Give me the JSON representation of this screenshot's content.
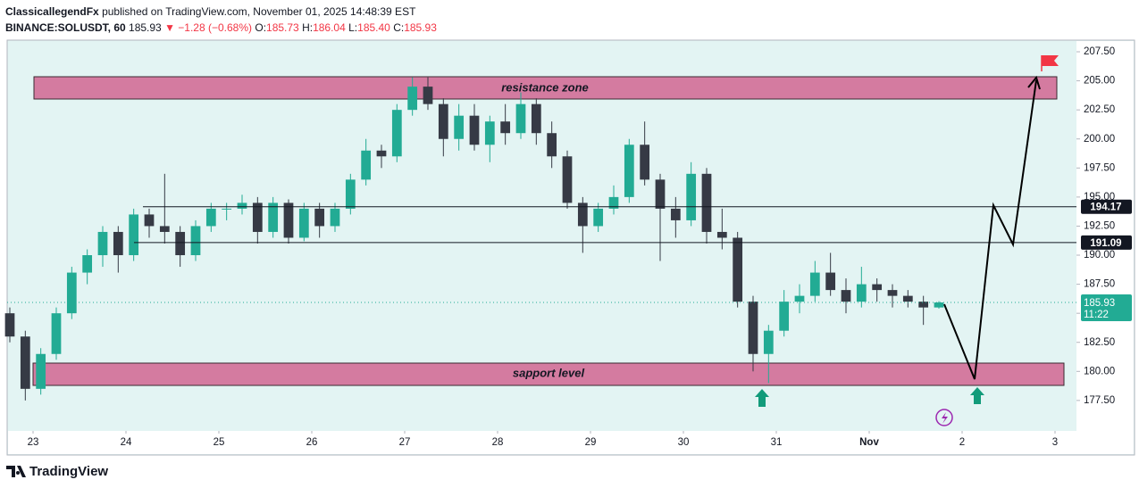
{
  "header": {
    "author": "ClassicallegendFx",
    "published": "published on TradingView.com, November 01, 2025 14:48:39 EST",
    "symbol": "BINANCE:SOLUSDT, 60",
    "last": "185.93",
    "change": "▼ −1.28 (−0.68%)",
    "o_label": "O:",
    "o": "185.73",
    "h_label": "H:",
    "h": "186.04",
    "l_label": "L:",
    "l": "185.40",
    "c_label": "C:",
    "c": "185.93"
  },
  "annotations": {
    "resistance": "resistance zone",
    "support": "sapport level",
    "countdown": "11:22"
  },
  "footer": {
    "brand": "TradingView"
  },
  "chart_data": {
    "type": "candlestick",
    "up_color": "#22ab94",
    "down_color": "#363a45",
    "x": [
      -6,
      -2,
      2,
      6,
      10,
      14,
      18,
      22,
      26,
      30,
      34,
      38,
      42,
      46,
      50,
      54,
      58,
      62,
      66,
      70,
      74,
      78,
      82,
      86,
      90,
      94,
      98,
      102,
      106,
      110,
      114,
      118,
      122,
      126,
      130,
      134,
      138,
      142,
      146,
      150,
      154,
      158,
      162,
      166,
      170,
      174,
      178,
      182,
      186,
      190,
      194,
      198,
      202,
      206,
      210,
      214,
      218,
      222,
      226,
      230,
      234
    ],
    "open": [
      185,
      183,
      178.5,
      181.5,
      185,
      188.5,
      190,
      192,
      190,
      193.5,
      192.5,
      192,
      190,
      192.5,
      194,
      194,
      194.5,
      192,
      194.5,
      191.5,
      194,
      192.5,
      194,
      196.5,
      199,
      198.5,
      202.5,
      204.5,
      203,
      200,
      202,
      199.5,
      201.5,
      200.5,
      203,
      200.5,
      198.5,
      194.5,
      192.5,
      194,
      195,
      199.5,
      196.5,
      194,
      193,
      197,
      192,
      191.5,
      186,
      181.5,
      183.5,
      186,
      186.5,
      188.5,
      187,
      186,
      187.5,
      187,
      186.5,
      186,
      185.5
    ],
    "high": [
      185.5,
      183.5,
      182,
      185.5,
      189,
      190.5,
      192.5,
      192.5,
      194,
      194,
      197,
      192.5,
      193,
      194.5,
      194.5,
      195.2,
      195,
      195,
      194.8,
      194.5,
      194.5,
      194.5,
      197,
      200,
      199.5,
      203,
      205.3,
      205.3,
      203.5,
      203,
      203,
      202,
      203,
      204,
      203.5,
      201.5,
      199,
      195,
      194.5,
      196,
      200,
      201.5,
      197,
      195,
      198,
      197.5,
      194,
      192,
      186.5,
      184,
      187,
      187.5,
      189.5,
      190.2,
      188,
      189,
      188,
      187.5,
      187,
      186.5,
      186.04
    ],
    "low": [
      182.5,
      177.5,
      178,
      181,
      184.5,
      187.5,
      189,
      188.5,
      189.5,
      191.5,
      191,
      189,
      189.5,
      192,
      193,
      193.5,
      191,
      191.5,
      191,
      191.2,
      191.5,
      192,
      193.5,
      196,
      197.5,
      198,
      202,
      202.5,
      198.5,
      199,
      199,
      198,
      199.5,
      200,
      199.5,
      197.5,
      194,
      190.2,
      192,
      193.5,
      194.5,
      196,
      189.5,
      191.5,
      192.5,
      191,
      190.5,
      185.5,
      180,
      179,
      183,
      185,
      186,
      186.5,
      185,
      185.5,
      186,
      185.5,
      185.5,
      184,
      185.4
    ],
    "close": [
      183,
      178.5,
      181.5,
      185,
      188.5,
      190,
      192,
      190,
      193.5,
      192.5,
      192,
      190,
      192.5,
      194,
      194,
      194.5,
      192,
      194.5,
      191.5,
      194,
      192.5,
      194,
      196.5,
      199,
      198.5,
      202.5,
      204.5,
      203,
      200,
      202,
      199.5,
      201.5,
      200.5,
      203,
      200.5,
      198.5,
      194.5,
      192.5,
      194,
      195,
      199.5,
      196.5,
      194,
      193,
      197,
      192,
      191.5,
      186,
      181.5,
      183.5,
      186,
      186.5,
      188.5,
      187,
      186,
      187.5,
      187,
      186.5,
      186,
      185.5,
      185.93
    ],
    "xlim": [
      -6.69,
      269.54
    ],
    "xticks": [
      {
        "value": 0,
        "label": "23"
      },
      {
        "value": 24,
        "label": "24"
      },
      {
        "value": 48,
        "label": "25"
      },
      {
        "value": 72,
        "label": "26"
      },
      {
        "value": 96,
        "label": "27"
      },
      {
        "value": 120,
        "label": "28"
      },
      {
        "value": 144,
        "label": "29"
      },
      {
        "value": 168,
        "label": "30"
      },
      {
        "value": 192,
        "label": "31"
      },
      {
        "value": 216,
        "label": "Nov"
      },
      {
        "value": 240,
        "label": "2"
      },
      {
        "value": 264,
        "label": "3"
      }
    ],
    "ylim": [
      174.88,
      208.5
    ],
    "yticks": [
      {
        "value": 177.5,
        "label": "177.50"
      },
      {
        "value": 180,
        "label": "180.00"
      },
      {
        "value": 182.5,
        "label": "182.50"
      },
      {
        "value": 185,
        "label": "185.00"
      },
      {
        "value": 187.5,
        "label": "187.50"
      },
      {
        "value": 190,
        "label": "190.00"
      },
      {
        "value": 192.5,
        "label": "192.50"
      },
      {
        "value": 195,
        "label": "195.00"
      },
      {
        "value": 197.5,
        "label": "197.50"
      },
      {
        "value": 200,
        "label": "200.00"
      },
      {
        "value": 202.5,
        "label": "202.50"
      },
      {
        "value": 205,
        "label": "205.00"
      },
      {
        "value": 207.5,
        "label": "207.50"
      }
    ],
    "price_lines": [
      194.17,
      191.09
    ],
    "last_price": 185.93
  }
}
